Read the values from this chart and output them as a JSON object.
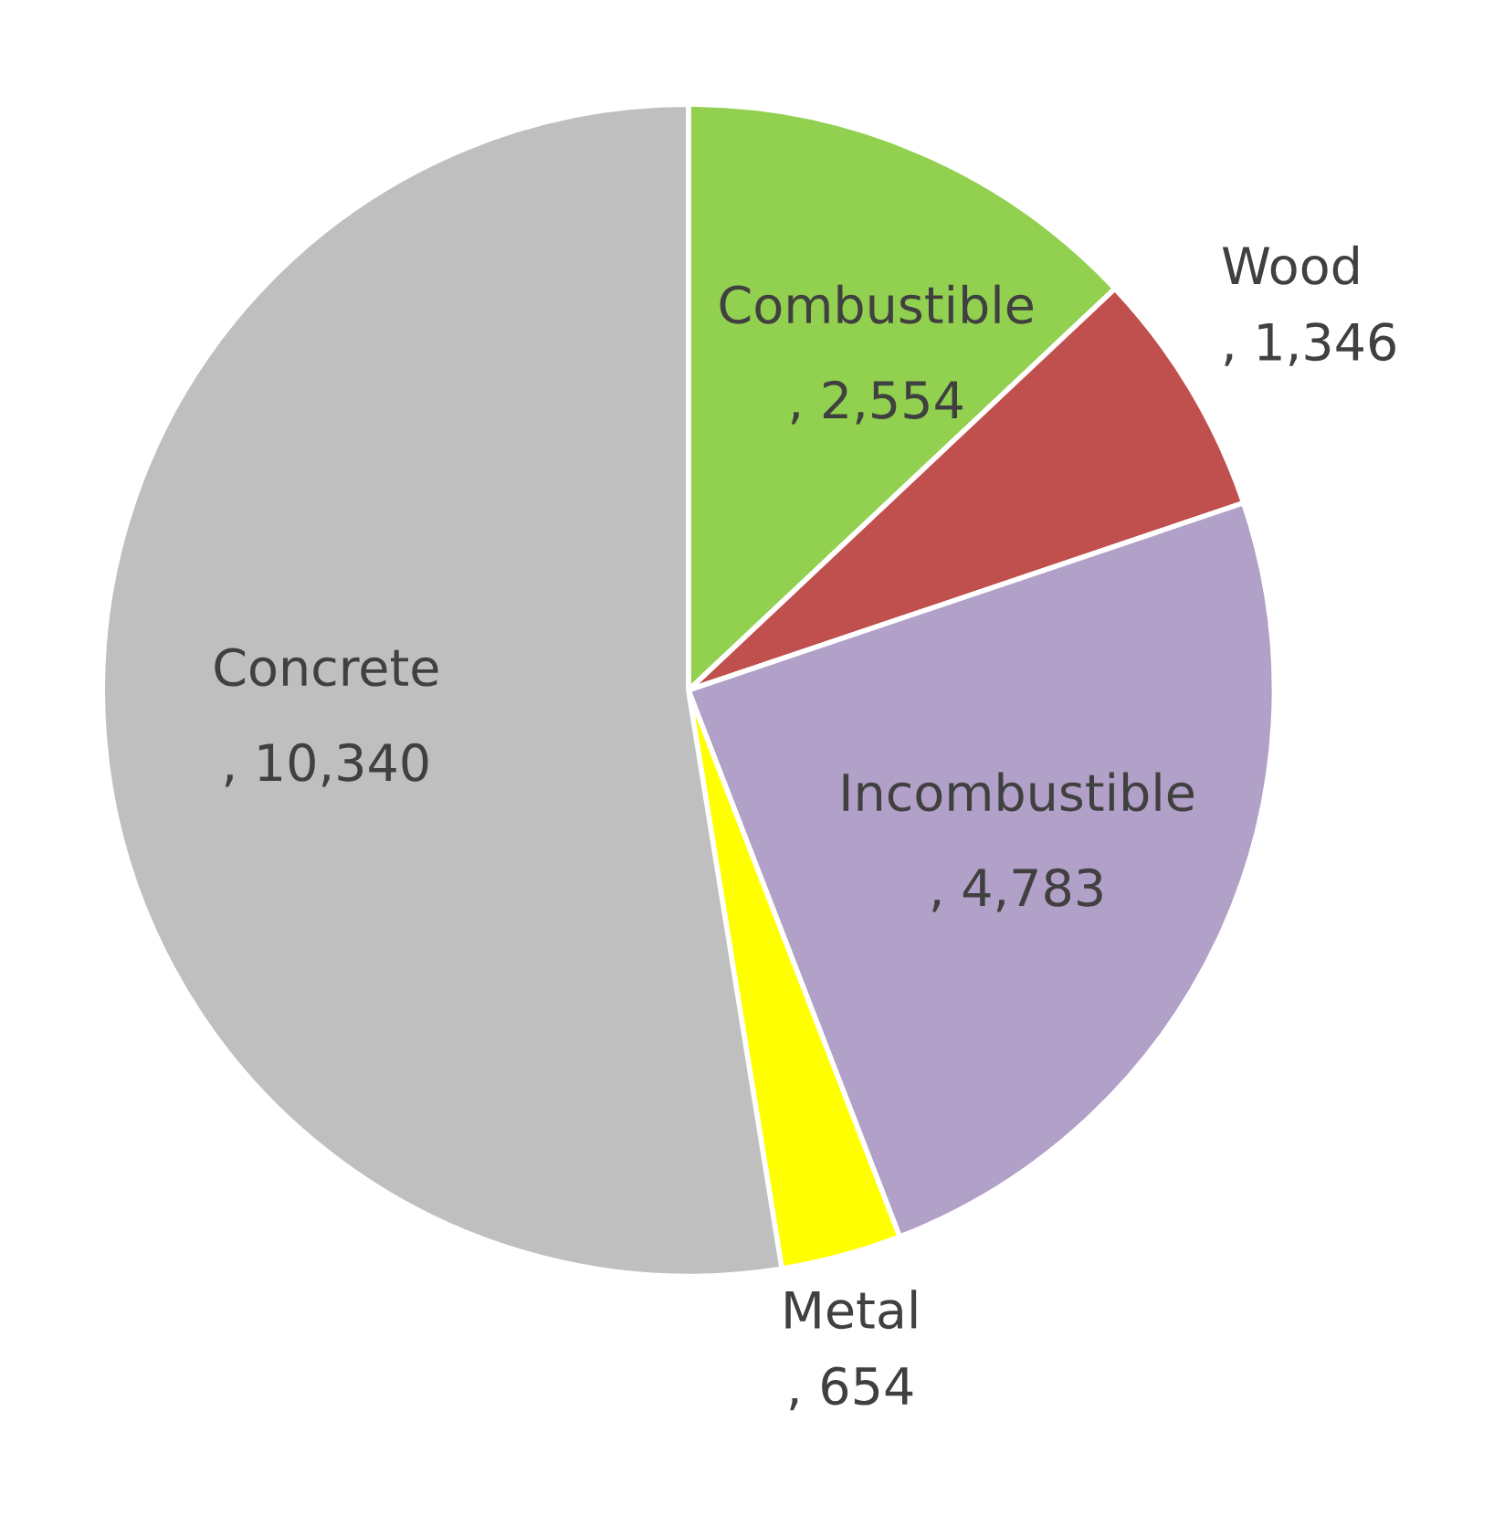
{
  "chart_data": {
    "type": "pie",
    "categories": [
      "Combustible",
      "Wood",
      "Incombustible",
      "Metal",
      "Concrete"
    ],
    "values": [
      2554,
      1346,
      4783,
      654,
      10340
    ],
    "value_labels": [
      ", 2,554",
      ", 1,346",
      ", 4,783",
      ", 654",
      ", 10,340"
    ],
    "colors": [
      "#92d050",
      "#c0504d",
      "#b1a0c7",
      "#ffff00",
      "#bfbfbf"
    ]
  }
}
